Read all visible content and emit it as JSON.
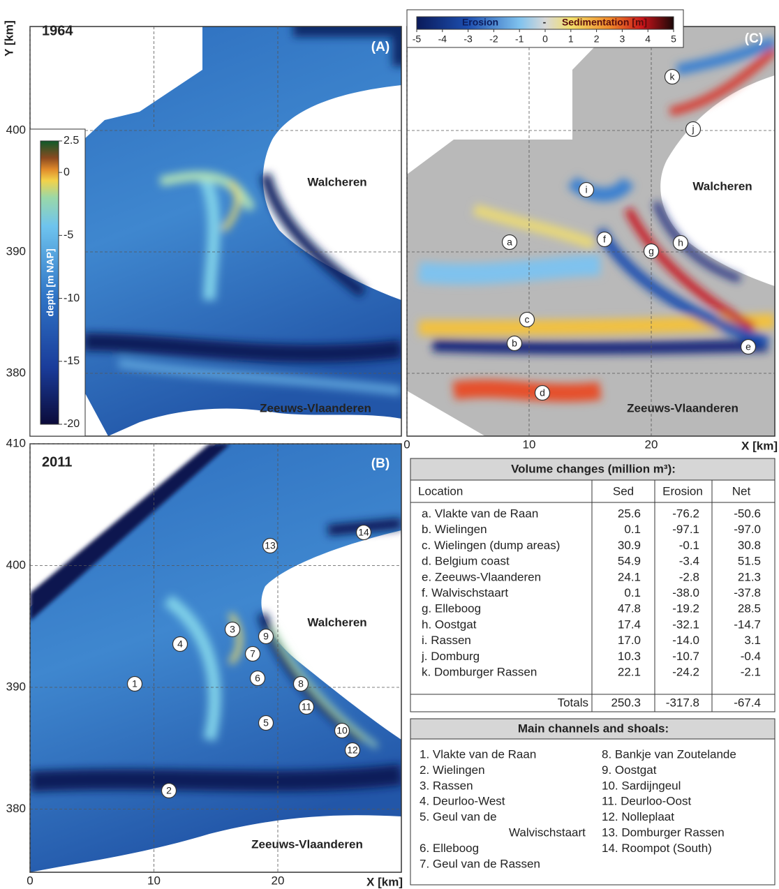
{
  "panel_a": {
    "y_label": "Y [km]",
    "year": "1964",
    "tag": "(A)",
    "places": [
      "Walcheren",
      "Zeeuws-Vlaanderen"
    ],
    "yticks": [
      400,
      390,
      380
    ],
    "colorbar": {
      "label": "depth [m NAP]",
      "ticks": [
        2.5,
        0,
        -5,
        -10,
        -15,
        -20
      ]
    }
  },
  "panel_b": {
    "year": "2011",
    "tag": "(B)",
    "places": [
      "Walcheren",
      "Zeeuws-Vlaanderen"
    ],
    "yticks": [
      410,
      400,
      390,
      380
    ],
    "xticks": [
      0,
      10,
      20
    ],
    "x_label": "X [km]",
    "markers": [
      "1",
      "2",
      "3",
      "4",
      "5",
      "6",
      "7",
      "8",
      "9",
      "10",
      "11",
      "12",
      "13",
      "14"
    ]
  },
  "panel_c": {
    "tag": "(C)",
    "places": [
      "Walcheren",
      "Zeeuws-Vlaanderen"
    ],
    "xticks": [
      0,
      10,
      20
    ],
    "x_label": "X [km]",
    "markers": [
      "a",
      "b",
      "c",
      "d",
      "e",
      "f",
      "g",
      "h",
      "i",
      "j",
      "k"
    ],
    "colorbar": {
      "erosion_label": "Erosion",
      "separator": "-",
      "sedimentation_label": "Sedimentation [m]",
      "ticks": [
        -5,
        -4,
        -3,
        -2,
        -1,
        0,
        1,
        2,
        3,
        4,
        5
      ]
    }
  },
  "volume_table": {
    "title": "Volume changes (million m³):",
    "columns": [
      "Location",
      "Sed",
      "Erosion",
      "Net"
    ],
    "rows": [
      [
        "a. Vlakte van de Raan",
        "25.6",
        "-76.2",
        "-50.6"
      ],
      [
        "b. Wielingen",
        "0.1",
        "-97.1",
        "-97.0"
      ],
      [
        "c. Wielingen (dump areas)",
        "30.9",
        "-0.1",
        "30.8"
      ],
      [
        "d. Belgium coast",
        "54.9",
        "-3.4",
        "51.5"
      ],
      [
        "e. Zeeuws-Vlaanderen",
        "24.1",
        "-2.8",
        "21.3"
      ],
      [
        "f. Walvischstaart",
        "0.1",
        "-38.0",
        "-37.8"
      ],
      [
        "g. Elleboog",
        "47.8",
        "-19.2",
        "28.5"
      ],
      [
        "h. Oostgat",
        "17.4",
        "-32.1",
        "-14.7"
      ],
      [
        "i. Rassen",
        "17.0",
        "-14.0",
        "3.1"
      ],
      [
        "j. Domburg",
        "10.3",
        "-10.7",
        "-0.4"
      ],
      [
        "k. Domburger Rassen",
        "22.1",
        "-24.2",
        "-2.1"
      ]
    ],
    "totals": [
      "Totals",
      "250.3",
      "-317.8",
      "-67.4"
    ]
  },
  "channels_box": {
    "title": "Main channels and shoals:",
    "left": [
      [
        "1. Vlakte van de Raan"
      ],
      [
        "2. Wielingen"
      ],
      [
        "3. Rassen"
      ],
      [
        "4. Deurloo-West"
      ],
      [
        "5. Geul van de",
        "Walvischstaart"
      ],
      [
        "6. Elleboog"
      ],
      [
        "7. Geul van de Rassen"
      ]
    ],
    "right": [
      [
        "8. Bankje van Zoutelande"
      ],
      [
        "9. Oostgat"
      ],
      [
        "10. Sardijngeul"
      ],
      [
        "11. Deurloo-Oost"
      ],
      [
        "12. Nolleplaat"
      ],
      [
        "13. Domburger Rassen"
      ],
      [
        "14. Roompot (South)"
      ]
    ]
  }
}
